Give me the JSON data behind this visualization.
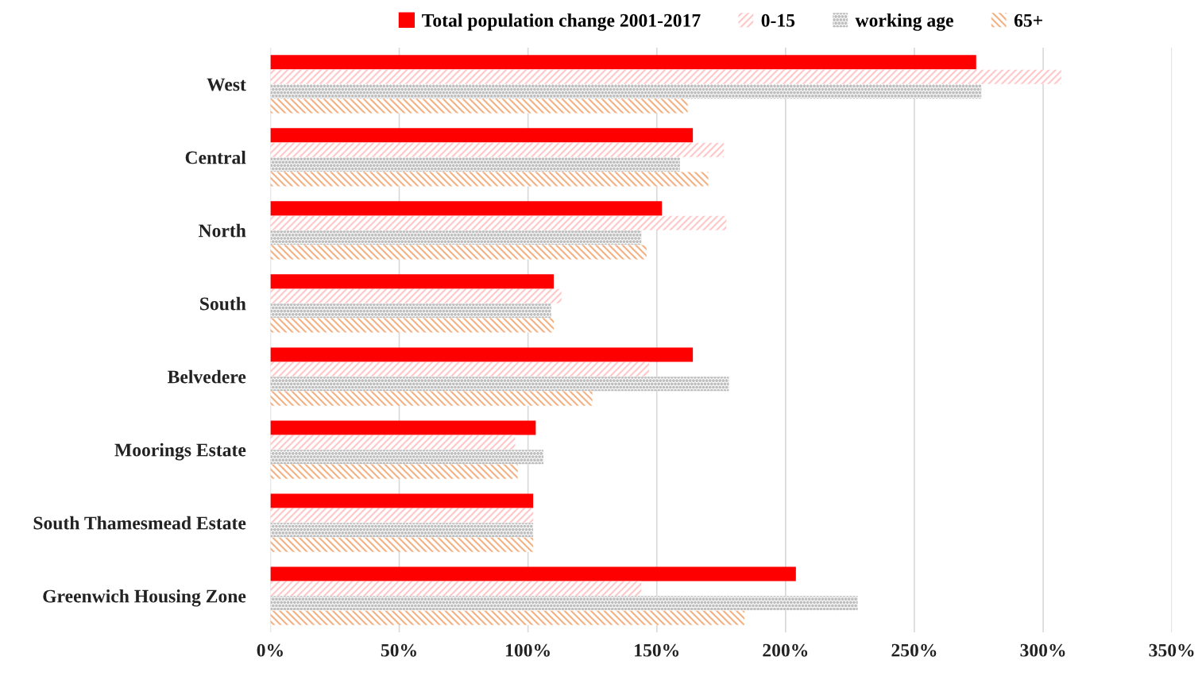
{
  "chart_data": {
    "type": "bar",
    "orientation": "horizontal",
    "categories": [
      "West",
      "Central",
      "North",
      "South",
      "Belvedere",
      "Moorings Estate",
      "South Thamesmead Estate",
      "Greenwich Housing Zone"
    ],
    "series": [
      {
        "name": "Total population change 2001-2017",
        "color": "#ff0000",
        "values": [
          274,
          164,
          152,
          110,
          164,
          103,
          102,
          204
        ]
      },
      {
        "name": "0-15",
        "color": "#ffc7c7",
        "values": [
          307,
          176,
          177,
          113,
          147,
          95,
          102,
          144
        ]
      },
      {
        "name": "working age",
        "color": "#bfbfbf",
        "values": [
          276,
          159,
          144,
          109,
          178,
          106,
          102,
          228
        ]
      },
      {
        "name": "65+",
        "color": "#f4b183",
        "values": [
          162,
          170,
          146,
          110,
          125,
          96,
          102,
          184
        ]
      }
    ],
    "xlim": [
      0,
      350
    ],
    "xticks": [
      {
        "value": 0,
        "label": "0%"
      },
      {
        "value": 50,
        "label": "50%"
      },
      {
        "value": 100,
        "label": "100%"
      },
      {
        "value": 150,
        "label": "150%"
      },
      {
        "value": 200,
        "label": "200%"
      },
      {
        "value": 250,
        "label": "250%"
      },
      {
        "value": 300,
        "label": "300%"
      },
      {
        "value": 350,
        "label": "350%"
      }
    ],
    "grid": "x",
    "legend": "top"
  }
}
